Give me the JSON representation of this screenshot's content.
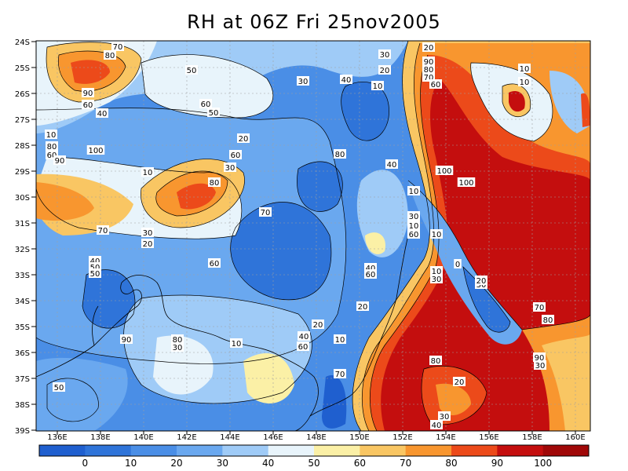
{
  "title": "RH at 06Z Fri 25nov2005",
  "lat_labels": [
    "24S",
    "25S",
    "26S",
    "27S",
    "28S",
    "29S",
    "30S",
    "31S",
    "32S",
    "33S",
    "34S",
    "35S",
    "36S",
    "37S",
    "38S",
    "39S"
  ],
  "lon_labels": [
    "136E",
    "138E",
    "140E",
    "142E",
    "144E",
    "146E",
    "148E",
    "150E",
    "152E",
    "154E",
    "156E",
    "158E",
    "160E"
  ],
  "colorbar": {
    "tick_labels": [
      "0",
      "10",
      "20",
      "30",
      "40",
      "50",
      "60",
      "70",
      "80",
      "90",
      "100"
    ],
    "colors": [
      "#1f5fcf",
      "#2f74d9",
      "#4a8ee6",
      "#6aa8ef",
      "#9fcbf7",
      "#e8f4fb",
      "#fbf0a6",
      "#f9c663",
      "#f8962f",
      "#ec4a1a",
      "#c40e0e",
      "#a00808"
    ]
  },
  "contour_labels": [
    "70",
    "80",
    "90",
    "60",
    "40",
    "50",
    "60",
    "50",
    "30",
    "40",
    "30",
    "20",
    "10",
    "10",
    "80",
    "60",
    "90",
    "100",
    "10",
    "60",
    "20",
    "30",
    "80",
    "70",
    "30",
    "20",
    "40",
    "50",
    "50",
    "60",
    "70",
    "80",
    "40",
    "10",
    "30",
    "10",
    "100",
    "100",
    "10",
    "60",
    "40",
    "60",
    "20",
    "10",
    "30",
    "0",
    "30",
    "20",
    "70",
    "80",
    "90",
    "30",
    "20",
    "10",
    "90",
    "80",
    "30",
    "10",
    "40",
    "60",
    "70",
    "80",
    "20",
    "30",
    "40",
    "50",
    "20",
    "90",
    "80",
    "70",
    "60",
    "10",
    "10"
  ]
}
